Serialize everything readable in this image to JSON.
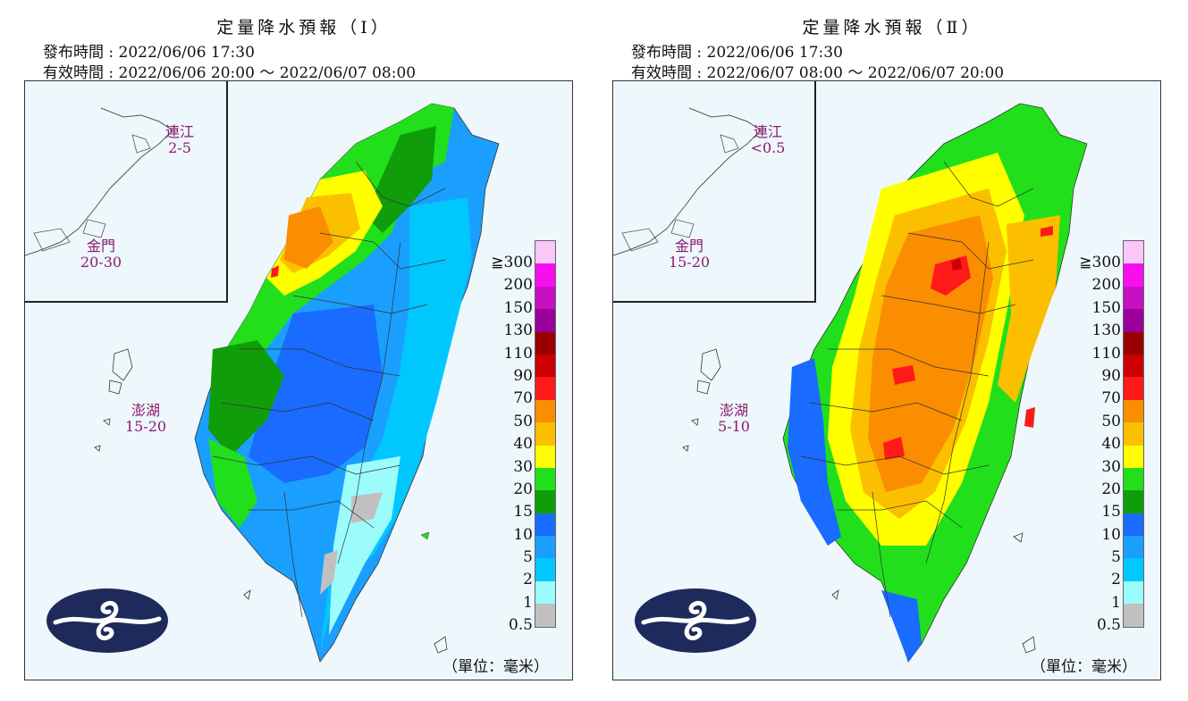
{
  "panels": [
    {
      "title": "定量降水預報（Ⅰ）",
      "issue_label": "發布時間 : 2022/06/06 17:30",
      "valid_label": "有效時間 : 2022/06/06 20:00 ～ 2022/06/07 08:00",
      "regions": {
        "matsu": {
          "name": "連江",
          "value": "2-5"
        },
        "kinmen": {
          "name": "金門",
          "value": "20-30"
        },
        "penghu": {
          "name": "澎湖",
          "value": "15-20"
        }
      }
    },
    {
      "title": "定量降水預報（Ⅱ）",
      "issue_label": "發布時間 : 2022/06/06 17:30",
      "valid_label": "有效時間 : 2022/06/07 08:00 ～ 2022/06/07 20:00",
      "regions": {
        "matsu": {
          "name": "連江",
          "value": "<0.5"
        },
        "kinmen": {
          "name": "金門",
          "value": "15-20"
        },
        "penghu": {
          "name": "澎湖",
          "value": "5-10"
        }
      }
    }
  ],
  "legend": {
    "labels": [
      "≧300",
      "200",
      "150",
      "130",
      "110",
      "90",
      "70",
      "50",
      "40",
      "30",
      "20",
      "15",
      "10",
      "5",
      "2",
      "1",
      "0.5"
    ],
    "colors": [
      "#fbc6f8",
      "#f70fef",
      "#c511c2",
      "#9a009a",
      "#9a0000",
      "#cc0000",
      "#ff1a1a",
      "#fb8d00",
      "#fbbf00",
      "#ffff00",
      "#21e01b",
      "#109d0a",
      "#1a6bff",
      "#1a9fff",
      "#00c8ff",
      "#9cfcfc",
      "#c0c0c0"
    ],
    "unit": "（單位：毫米）"
  },
  "colors": {
    "map_background": "#eef7fc",
    "label_color": "#8a1a6e",
    "logo_navy": "#1e2a5c"
  }
}
